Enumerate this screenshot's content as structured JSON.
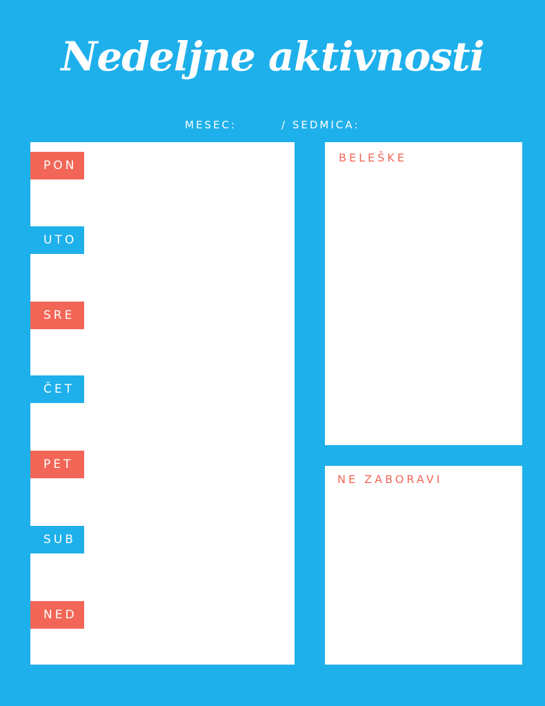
{
  "title": "Nedeljne aktivnosti",
  "header": {
    "month_label": "MESEC:",
    "week_label": "/ SEDMICA:"
  },
  "days": [
    "PON",
    "UTO",
    "SRE",
    "ČET",
    "PET",
    "SUB",
    "NED"
  ],
  "notes": {
    "title": "BELEŠKE"
  },
  "reminders": {
    "title": "NE ZABORAVI"
  },
  "colors": {
    "background": "#1eb0eb",
    "accent": "#f26657",
    "panel": "#ffffff"
  }
}
